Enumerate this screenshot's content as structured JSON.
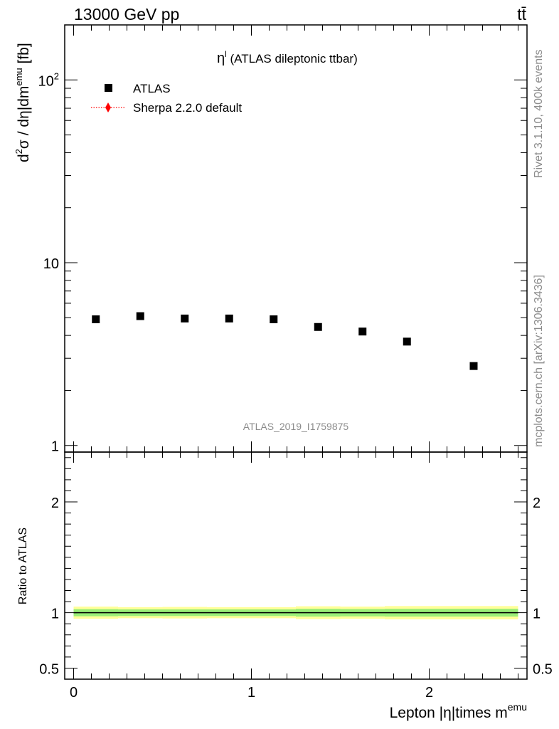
{
  "header": {
    "left": "13000 GeV pp",
    "right": "tt̄"
  },
  "side_labels": {
    "rivet": "Rivet 3.1.10,  400k events",
    "mcplots": "mcplots.cern.ch [arXiv:1306.3436]"
  },
  "chart_data": [
    {
      "type": "scatter",
      "title": "η^l (ATLAS dileptonic ttbar)",
      "title_main": "η",
      "title_sup": "l",
      "title_rest": " (ATLAS dileptonic ttbar)",
      "watermark": "ATLAS_2019_I1759875",
      "ylabel": "d²σ / dη|dm^emu [fb]",
      "ylabel_parts": {
        "a": "d",
        "a_sup": "2",
        "b": "σ / dη|dm",
        "b_sup": "emu",
        "c": " [fb]"
      },
      "yscale": "log",
      "ylim": [
        0.92,
        200
      ],
      "yticks": [
        {
          "value": 1,
          "label": "1"
        },
        {
          "value": 10,
          "label": "10"
        },
        {
          "value": 100,
          "label": "10",
          "sup": "2"
        }
      ],
      "xlim": [
        -0.05,
        2.55
      ],
      "legend": [
        {
          "name": "ATLAS",
          "marker": "square",
          "color": "#000000"
        },
        {
          "name": "Sherpa 2.2.0 default",
          "marker": "diamond-dotted",
          "color": "#ff0000"
        }
      ],
      "legend_position": "top-left",
      "series": [
        {
          "name": "ATLAS",
          "x": [
            0.125,
            0.375,
            0.625,
            0.875,
            1.125,
            1.375,
            1.625,
            1.875,
            2.25
          ],
          "values": [
            4.9,
            5.1,
            4.95,
            4.95,
            4.9,
            4.45,
            4.2,
            3.7,
            2.72
          ]
        }
      ]
    },
    {
      "type": "line",
      "ylabel": "Ratio to ATLAS",
      "xlabel": "Lepton |η|times m^emu",
      "xlabel_main": "Lepton |η|times m",
      "xlabel_sup": "emu",
      "ylim": [
        0.4,
        2.45
      ],
      "yticks": [
        {
          "value": 0.5,
          "label": "0.5"
        },
        {
          "value": 1,
          "label": "1"
        },
        {
          "value": 2,
          "label": "2"
        }
      ],
      "xlim": [
        -0.05,
        2.55
      ],
      "xticks": [
        {
          "value": 0,
          "label": "0"
        },
        {
          "value": 1,
          "label": "1"
        },
        {
          "value": 2,
          "label": "2"
        }
      ],
      "reference": 1,
      "bins": [
        0,
        0.25,
        0.5,
        0.75,
        1.0,
        1.25,
        1.5,
        1.75,
        2.0,
        2.5
      ],
      "band_outer": [
        0.055,
        0.05,
        0.052,
        0.05,
        0.05,
        0.058,
        0.055,
        0.06,
        0.06
      ],
      "band_inner": [
        0.032,
        0.03,
        0.03,
        0.03,
        0.03,
        0.035,
        0.033,
        0.035,
        0.035
      ],
      "band_outer_color": "#ffff99",
      "band_inner_color": "#99ee77"
    }
  ]
}
